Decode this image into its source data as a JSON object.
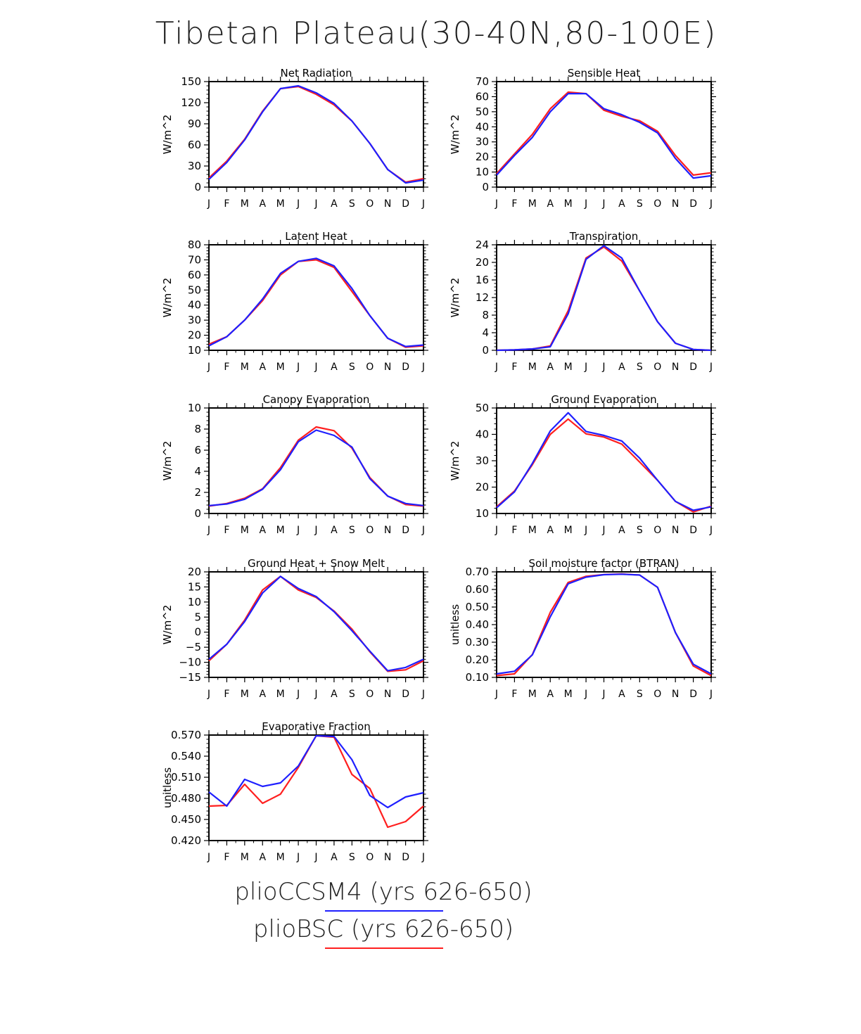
{
  "figure": {
    "title": "Tibetan Plateau(30-40N,80-100E)"
  },
  "colors": {
    "blue": "#1f1fff",
    "red": "#ff1f1f"
  },
  "legend": [
    {
      "label": "plioCCSM4 (yrs 626-650)",
      "color": "#1f1fff"
    },
    {
      "label": "plioBSC (yrs 626-650)",
      "color": "#ff1f1f"
    }
  ],
  "chart_data": [
    {
      "type": "line",
      "title": "Net Radiation",
      "ylabel": "W/m^2",
      "categories": [
        "J",
        "F",
        "M",
        "A",
        "M",
        "J",
        "J",
        "A",
        "S",
        "O",
        "N",
        "D",
        "J"
      ],
      "ylim": [
        0,
        150
      ],
      "yticks": [
        0,
        30,
        60,
        90,
        120,
        150
      ],
      "ytick_labels": [
        "0",
        "30",
        "60",
        "90",
        "120",
        "150"
      ],
      "series": [
        {
          "name": "plioBSC (yrs 626-650)",
          "color": "#ff1f1f",
          "values": [
            13,
            37,
            68,
            108,
            140,
            143,
            132,
            117,
            94,
            62,
            25,
            7,
            12
          ]
        },
        {
          "name": "plioCCSM4 (yrs 626-650)",
          "color": "#1f1fff",
          "values": [
            11,
            35,
            67,
            107,
            140,
            144,
            134,
            119,
            94,
            62,
            25,
            6,
            10
          ]
        }
      ]
    },
    {
      "type": "line",
      "title": "Sensible Heat",
      "ylabel": "W/m^2",
      "categories": [
        "J",
        "F",
        "M",
        "A",
        "M",
        "J",
        "J",
        "A",
        "S",
        "O",
        "N",
        "D",
        "J"
      ],
      "ylim": [
        0,
        70
      ],
      "yticks": [
        0,
        10,
        20,
        30,
        40,
        50,
        60,
        70
      ],
      "ytick_labels": [
        "0",
        "10",
        "20",
        "30",
        "40",
        "50",
        "60",
        "70"
      ],
      "series": [
        {
          "name": "plioBSC (yrs 626-650)",
          "color": "#ff1f1f",
          "values": [
            9,
            22,
            35,
            52,
            63,
            62,
            51,
            47,
            44,
            37,
            21,
            8,
            9.5
          ]
        },
        {
          "name": "plioCCSM4 (yrs 626-650)",
          "color": "#1f1fff",
          "values": [
            8,
            21,
            33,
            50,
            62,
            62,
            52,
            48,
            43,
            36,
            19,
            6,
            7.5
          ]
        }
      ]
    },
    {
      "type": "line",
      "title": "Latent Heat",
      "ylabel": "W/m^2",
      "categories": [
        "J",
        "F",
        "M",
        "A",
        "M",
        "J",
        "J",
        "A",
        "S",
        "O",
        "N",
        "D",
        "J"
      ],
      "ylim": [
        10,
        80
      ],
      "yticks": [
        10,
        20,
        30,
        40,
        50,
        60,
        70,
        80
      ],
      "ytick_labels": [
        "10",
        "20",
        "30",
        "40",
        "50",
        "60",
        "70",
        "80"
      ],
      "series": [
        {
          "name": "plioBSC (yrs 626-650)",
          "color": "#ff1f1f",
          "values": [
            14,
            19,
            30,
            43,
            60,
            69,
            70,
            65,
            49,
            33,
            18,
            12,
            13
          ]
        },
        {
          "name": "plioCCSM4 (yrs 626-650)",
          "color": "#1f1fff",
          "values": [
            13,
            19,
            30,
            44,
            61,
            69,
            71,
            66,
            51,
            33,
            18,
            12.5,
            13.5
          ]
        }
      ]
    },
    {
      "type": "line",
      "title": "Transpiration",
      "ylabel": "W/m^2",
      "categories": [
        "J",
        "F",
        "M",
        "A",
        "M",
        "J",
        "J",
        "A",
        "S",
        "O",
        "N",
        "D",
        "J"
      ],
      "ylim": [
        0,
        24
      ],
      "yticks": [
        0,
        4,
        8,
        12,
        16,
        20,
        24
      ],
      "ytick_labels": [
        "0",
        "4",
        "8",
        "12",
        "16",
        "20",
        "24"
      ],
      "series": [
        {
          "name": "plioBSC (yrs 626-650)",
          "color": "#ff1f1f",
          "values": [
            0,
            0.1,
            0.3,
            1,
            9,
            21,
            23.5,
            20.3,
            13.5,
            6.5,
            1.6,
            0.2,
            0
          ]
        },
        {
          "name": "plioCCSM4 (yrs 626-650)",
          "color": "#1f1fff",
          "values": [
            0,
            0.1,
            0.3,
            0.8,
            8.3,
            20.7,
            23.8,
            21,
            13.5,
            6.5,
            1.6,
            0.2,
            0
          ]
        }
      ]
    },
    {
      "type": "line",
      "title": "Canopy Evaporation",
      "ylabel": "W/m^2",
      "categories": [
        "J",
        "F",
        "M",
        "A",
        "M",
        "J",
        "J",
        "A",
        "S",
        "O",
        "N",
        "D",
        "J"
      ],
      "ylim": [
        0,
        10
      ],
      "yticks": [
        0,
        2,
        4,
        6,
        8,
        10
      ],
      "ytick_labels": [
        "0",
        "2",
        "4",
        "6",
        "8",
        "10"
      ],
      "series": [
        {
          "name": "plioBSC (yrs 626-650)",
          "color": "#ff1f1f",
          "values": [
            0.7,
            0.95,
            1.45,
            2.35,
            4.35,
            6.95,
            8.2,
            7.85,
            6.2,
            3.4,
            1.65,
            0.85,
            0.7
          ]
        },
        {
          "name": "plioCCSM4 (yrs 626-650)",
          "color": "#1f1fff",
          "values": [
            0.75,
            0.9,
            1.35,
            2.3,
            4.15,
            6.8,
            7.9,
            7.4,
            6.3,
            3.3,
            1.65,
            0.95,
            0.75
          ]
        }
      ]
    },
    {
      "type": "line",
      "title": "Ground Evaporation",
      "ylabel": "W/m^2",
      "categories": [
        "J",
        "F",
        "M",
        "A",
        "M",
        "J",
        "J",
        "A",
        "S",
        "O",
        "N",
        "D",
        "J"
      ],
      "ylim": [
        10,
        50
      ],
      "yticks": [
        10,
        20,
        30,
        40,
        50
      ],
      "ytick_labels": [
        "10",
        "20",
        "30",
        "40",
        "50"
      ],
      "series": [
        {
          "name": "plioBSC (yrs 626-650)",
          "color": "#ff1f1f",
          "values": [
            12.5,
            18.5,
            28.5,
            40,
            45.8,
            40.2,
            39,
            36.3,
            29.5,
            22.6,
            14.6,
            10.6,
            12.8
          ]
        },
        {
          "name": "plioCCSM4 (yrs 626-650)",
          "color": "#1f1fff",
          "values": [
            12.2,
            18.2,
            29,
            41.3,
            48.2,
            41.1,
            39.6,
            37.5,
            31,
            22.6,
            14.6,
            11.2,
            12.5
          ]
        }
      ]
    },
    {
      "type": "line",
      "title": "Ground Heat + Snow Melt",
      "ylabel": "W/m^2",
      "categories": [
        "J",
        "F",
        "M",
        "A",
        "M",
        "J",
        "J",
        "A",
        "S",
        "O",
        "N",
        "D",
        "J"
      ],
      "ylim": [
        -15,
        20
      ],
      "yticks": [
        -15,
        -10,
        -5,
        0,
        5,
        10,
        15,
        20
      ],
      "ytick_labels": [
        "−15",
        "−10",
        "−5",
        "0",
        "5",
        "10",
        "15",
        "20"
      ],
      "series": [
        {
          "name": "plioBSC (yrs 626-650)",
          "color": "#ff1f1f",
          "values": [
            -9.5,
            -4,
            4,
            14,
            18.5,
            14,
            11.5,
            7,
            1,
            -6.5,
            -13,
            -12.5,
            -9.5
          ]
        },
        {
          "name": "plioCCSM4 (yrs 626-650)",
          "color": "#1f1fff",
          "values": [
            -9,
            -4,
            3.5,
            13,
            18.5,
            14.5,
            11.8,
            6.8,
            0.5,
            -6.3,
            -12.8,
            -11.7,
            -9
          ]
        }
      ]
    },
    {
      "type": "line",
      "title": "Soil moisture factor (BTRAN)",
      "ylabel": "unitless",
      "categories": [
        "J",
        "F",
        "M",
        "A",
        "M",
        "J",
        "J",
        "A",
        "S",
        "O",
        "N",
        "D",
        "J"
      ],
      "ylim": [
        0.1,
        0.7
      ],
      "yticks": [
        0.1,
        0.2,
        0.3,
        0.4,
        0.5,
        0.6,
        0.7
      ],
      "ytick_labels": [
        "0.10",
        "0.20",
        "0.30",
        "0.40",
        "0.50",
        "0.60",
        "0.70"
      ],
      "series": [
        {
          "name": "plioBSC (yrs 626-650)",
          "color": "#ff1f1f",
          "values": [
            0.11,
            0.12,
            0.23,
            0.47,
            0.64,
            0.675,
            0.685,
            0.688,
            0.682,
            0.612,
            0.355,
            0.165,
            0.11
          ]
        },
        {
          "name": "plioCCSM4 (yrs 626-650)",
          "color": "#1f1fff",
          "values": [
            0.12,
            0.135,
            0.228,
            0.445,
            0.632,
            0.67,
            0.684,
            0.687,
            0.682,
            0.612,
            0.355,
            0.175,
            0.12
          ]
        }
      ]
    },
    {
      "type": "line",
      "title": "Evaporative Fraction",
      "ylabel": "unitless",
      "categories": [
        "J",
        "F",
        "M",
        "A",
        "M",
        "J",
        "J",
        "A",
        "S",
        "O",
        "N",
        "D",
        "J"
      ],
      "ylim": [
        0.42,
        0.57
      ],
      "yticks": [
        0.42,
        0.45,
        0.48,
        0.51,
        0.54,
        0.57
      ],
      "ytick_labels": [
        "0.420",
        "0.450",
        "0.480",
        "0.510",
        "0.540",
        "0.570"
      ],
      "series": [
        {
          "name": "plioBSC (yrs 626-650)",
          "color": "#ff1f1f",
          "values": [
            0.469,
            0.47,
            0.5,
            0.473,
            0.486,
            0.524,
            0.569,
            0.567,
            0.514,
            0.494,
            0.439,
            0.447,
            0.469
          ]
        },
        {
          "name": "plioCCSM4 (yrs 626-650)",
          "color": "#1f1fff",
          "values": [
            0.489,
            0.469,
            0.507,
            0.497,
            0.502,
            0.526,
            0.569,
            0.568,
            0.535,
            0.484,
            0.467,
            0.482,
            0.488
          ]
        }
      ]
    }
  ]
}
